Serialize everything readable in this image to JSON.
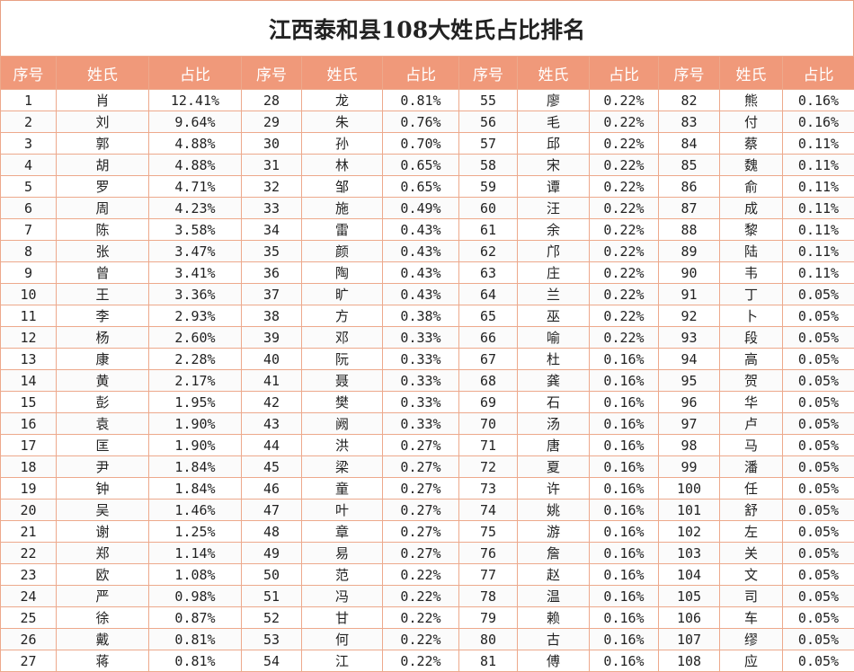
{
  "title": "江西泰和县108大姓氏占比排名",
  "table": {
    "header": [
      "序号",
      "姓氏",
      "占比",
      "序号",
      "姓氏",
      "占比",
      "序号",
      "姓氏",
      "占比",
      "序号",
      "姓氏",
      "占比"
    ],
    "rows": [
      [
        1,
        "肖",
        "12.41%",
        28,
        "龙",
        "0.81%",
        55,
        "廖",
        "0.22%",
        82,
        "熊",
        "0.16%"
      ],
      [
        2,
        "刘",
        "9.64%",
        29,
        "朱",
        "0.76%",
        56,
        "毛",
        "0.22%",
        83,
        "付",
        "0.16%"
      ],
      [
        3,
        "郭",
        "4.88%",
        30,
        "孙",
        "0.70%",
        57,
        "邱",
        "0.22%",
        84,
        "蔡",
        "0.11%"
      ],
      [
        4,
        "胡",
        "4.88%",
        31,
        "林",
        "0.65%",
        58,
        "宋",
        "0.22%",
        85,
        "魏",
        "0.11%"
      ],
      [
        5,
        "罗",
        "4.71%",
        32,
        "邹",
        "0.65%",
        59,
        "谭",
        "0.22%",
        86,
        "俞",
        "0.11%"
      ],
      [
        6,
        "周",
        "4.23%",
        33,
        "施",
        "0.49%",
        60,
        "汪",
        "0.22%",
        87,
        "成",
        "0.11%"
      ],
      [
        7,
        "陈",
        "3.58%",
        34,
        "雷",
        "0.43%",
        61,
        "余",
        "0.22%",
        88,
        "黎",
        "0.11%"
      ],
      [
        8,
        "张",
        "3.47%",
        35,
        "颜",
        "0.43%",
        62,
        "邝",
        "0.22%",
        89,
        "陆",
        "0.11%"
      ],
      [
        9,
        "曾",
        "3.41%",
        36,
        "陶",
        "0.43%",
        63,
        "庄",
        "0.22%",
        90,
        "韦",
        "0.11%"
      ],
      [
        10,
        "王",
        "3.36%",
        37,
        "旷",
        "0.43%",
        64,
        "兰",
        "0.22%",
        91,
        "丁",
        "0.05%"
      ],
      [
        11,
        "李",
        "2.93%",
        38,
        "方",
        "0.38%",
        65,
        "巫",
        "0.22%",
        92,
        "卜",
        "0.05%"
      ],
      [
        12,
        "杨",
        "2.60%",
        39,
        "邓",
        "0.33%",
        66,
        "喻",
        "0.22%",
        93,
        "段",
        "0.05%"
      ],
      [
        13,
        "康",
        "2.28%",
        40,
        "阮",
        "0.33%",
        67,
        "杜",
        "0.16%",
        94,
        "高",
        "0.05%"
      ],
      [
        14,
        "黄",
        "2.17%",
        41,
        "聂",
        "0.33%",
        68,
        "龚",
        "0.16%",
        95,
        "贺",
        "0.05%"
      ],
      [
        15,
        "彭",
        "1.95%",
        42,
        "樊",
        "0.33%",
        69,
        "石",
        "0.16%",
        96,
        "华",
        "0.05%"
      ],
      [
        16,
        "袁",
        "1.90%",
        43,
        "阙",
        "0.33%",
        70,
        "汤",
        "0.16%",
        97,
        "卢",
        "0.05%"
      ],
      [
        17,
        "匡",
        "1.90%",
        44,
        "洪",
        "0.27%",
        71,
        "唐",
        "0.16%",
        98,
        "马",
        "0.05%"
      ],
      [
        18,
        "尹",
        "1.84%",
        45,
        "梁",
        "0.27%",
        72,
        "夏",
        "0.16%",
        99,
        "潘",
        "0.05%"
      ],
      [
        19,
        "钟",
        "1.84%",
        46,
        "童",
        "0.27%",
        73,
        "许",
        "0.16%",
        100,
        "任",
        "0.05%"
      ],
      [
        20,
        "吴",
        "1.46%",
        47,
        "叶",
        "0.27%",
        74,
        "姚",
        "0.16%",
        101,
        "舒",
        "0.05%"
      ],
      [
        21,
        "谢",
        "1.25%",
        48,
        "章",
        "0.27%",
        75,
        "游",
        "0.16%",
        102,
        "左",
        "0.05%"
      ],
      [
        22,
        "郑",
        "1.14%",
        49,
        "易",
        "0.27%",
        76,
        "詹",
        "0.16%",
        103,
        "关",
        "0.05%"
      ],
      [
        23,
        "欧",
        "1.08%",
        50,
        "范",
        "0.22%",
        77,
        "赵",
        "0.16%",
        104,
        "文",
        "0.05%"
      ],
      [
        24,
        "严",
        "0.98%",
        51,
        "冯",
        "0.22%",
        78,
        "温",
        "0.16%",
        105,
        "司",
        "0.05%"
      ],
      [
        25,
        "徐",
        "0.87%",
        52,
        "甘",
        "0.22%",
        79,
        "赖",
        "0.16%",
        106,
        "车",
        "0.05%"
      ],
      [
        26,
        "戴",
        "0.81%",
        53,
        "何",
        "0.22%",
        80,
        "古",
        "0.16%",
        107,
        "缪",
        "0.05%"
      ],
      [
        27,
        "蒋",
        "0.81%",
        54,
        "江",
        "0.22%",
        81,
        "傅",
        "0.16%",
        108,
        "应",
        "0.05%"
      ]
    ]
  }
}
